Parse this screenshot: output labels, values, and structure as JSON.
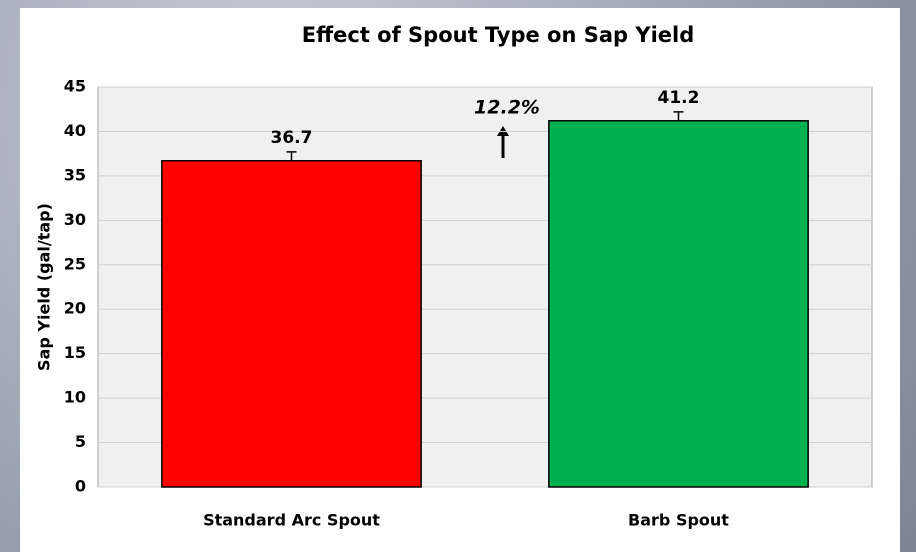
{
  "chart_data": {
    "type": "bar",
    "title": "Effect of Spout Type on Sap Yield",
    "y_label": "Sap Yield (gal/tap)",
    "categories": [
      "Standard Arc Spout",
      "Barb Spout"
    ],
    "values": [
      36.7,
      41.2
    ],
    "errors": [
      1.0,
      1.0
    ],
    "colors": [
      "#ff0000",
      "#00b050"
    ],
    "annotation": "12.2%",
    "ylim": [
      0,
      45
    ],
    "yticks": [
      0,
      5,
      10,
      15,
      20,
      25,
      30,
      35,
      40,
      45
    ],
    "grid": true
  }
}
